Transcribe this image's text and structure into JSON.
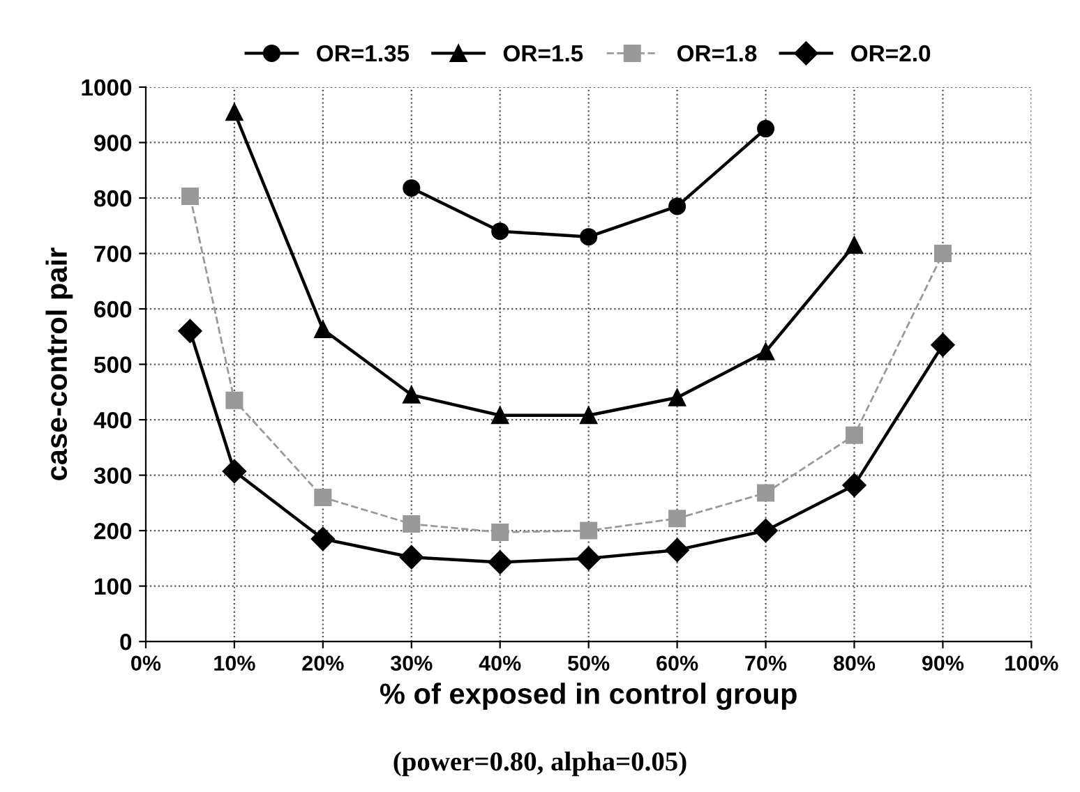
{
  "chart_data": {
    "type": "line",
    "xlabel": "% of exposed in control group",
    "ylabel": "case-control pair",
    "annotations": [
      "(power=0.80, alpha=0.05)"
    ],
    "xlim": [
      0,
      100
    ],
    "xticks": [
      {
        "value": 0,
        "label": "0%"
      },
      {
        "value": 10,
        "label": "10%"
      },
      {
        "value": 20,
        "label": "20%"
      },
      {
        "value": 30,
        "label": "30%"
      },
      {
        "value": 40,
        "label": "40%"
      },
      {
        "value": 50,
        "label": "50%"
      },
      {
        "value": 60,
        "label": "60%"
      },
      {
        "value": 70,
        "label": "70%"
      },
      {
        "value": 80,
        "label": "80%"
      },
      {
        "value": 90,
        "label": "90%"
      },
      {
        "value": 100,
        "label": "100%"
      }
    ],
    "ylim": [
      0,
      1000
    ],
    "yticks": [
      0,
      100,
      200,
      300,
      400,
      500,
      600,
      700,
      800,
      900,
      1000
    ],
    "grid": true,
    "legend": "top",
    "series": [
      {
        "name": "OR=1.35",
        "color": "#000000",
        "marker": "circle",
        "line_style": "solid",
        "x": [
          30,
          40,
          50,
          60,
          70
        ],
        "values": [
          818,
          740,
          730,
          785,
          925
        ]
      },
      {
        "name": "OR=1.5",
        "color": "#000000",
        "marker": "triangle",
        "line_style": "solid",
        "x": [
          10,
          20,
          30,
          40,
          50,
          60,
          70,
          80
        ],
        "values": [
          955,
          563,
          445,
          408,
          408,
          440,
          523,
          715
        ]
      },
      {
        "name": "OR=1.8",
        "color": "#999999",
        "marker": "square",
        "line_style": "dashed",
        "x": [
          5,
          10,
          20,
          30,
          40,
          50,
          60,
          70,
          80,
          90
        ],
        "values": [
          803,
          435,
          260,
          212,
          197,
          200,
          222,
          268,
          372,
          700
        ]
      },
      {
        "name": "OR=2.0",
        "color": "#000000",
        "marker": "diamond",
        "line_style": "solid",
        "x": [
          5,
          10,
          20,
          30,
          40,
          50,
          60,
          70,
          80,
          90
        ],
        "values": [
          560,
          307,
          185,
          152,
          143,
          150,
          165,
          200,
          282,
          535
        ]
      }
    ]
  }
}
